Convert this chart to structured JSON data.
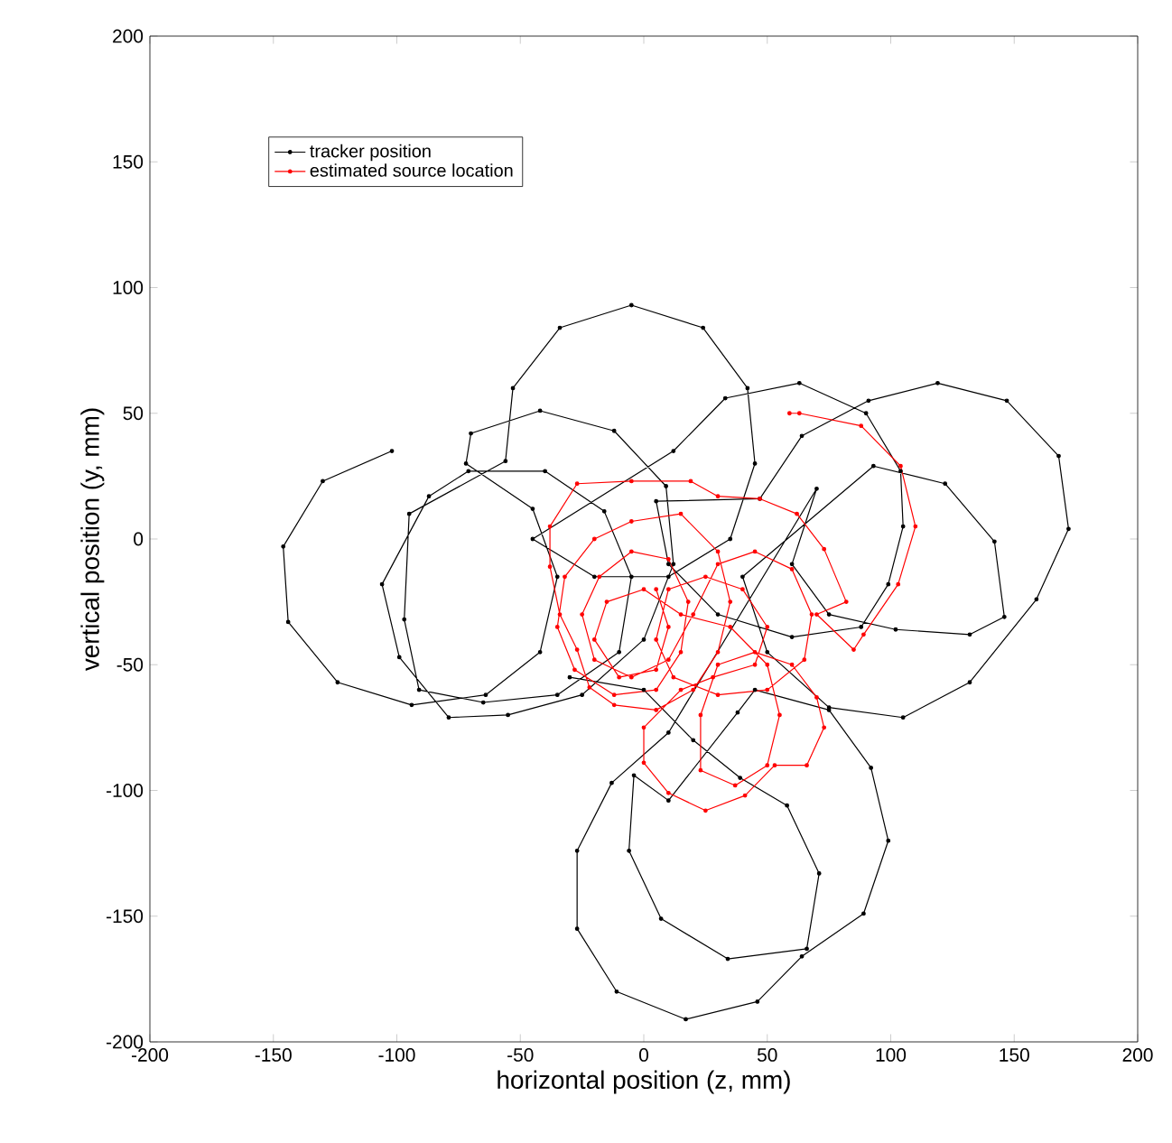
{
  "chart_data": {
    "type": "line",
    "xlabel": "horizontal position (z, mm)",
    "ylabel": "vertical position (y, mm)",
    "xlim": [
      -200,
      200
    ],
    "ylim": [
      -200,
      200
    ],
    "xticks": [
      -200,
      -150,
      -100,
      -50,
      0,
      50,
      100,
      150,
      200
    ],
    "yticks": [
      -200,
      -150,
      -100,
      -50,
      0,
      50,
      100,
      150,
      200
    ],
    "legend": "top left",
    "marker": "circle",
    "line_style": "solid",
    "grid": false,
    "series": [
      {
        "name": "tracker position",
        "color": "#000000",
        "x": [
          -102,
          -130,
          -146,
          -144,
          -124,
          -94,
          -64,
          -42,
          -35,
          -45,
          -72,
          -70,
          -42,
          -12,
          9,
          12,
          0,
          -25,
          -55,
          -79,
          -99,
          -106,
          -87,
          -71,
          -40,
          -16,
          -5,
          -10,
          -35,
          -65,
          -91,
          -97,
          -95,
          -56,
          -53,
          -34,
          -5,
          24,
          42,
          45,
          35,
          10,
          -20,
          -45,
          12,
          33,
          63,
          90,
          104,
          105,
          99,
          88,
          60,
          30,
          10,
          5,
          47,
          64,
          91,
          119,
          147,
          168,
          172,
          159,
          132,
          105,
          75,
          50,
          40,
          93,
          122,
          142,
          146,
          132,
          102,
          75,
          60,
          70,
          10,
          -13,
          -27,
          -27,
          -11,
          17,
          46,
          64,
          89,
          99,
          92,
          75,
          45,
          38,
          10,
          -4,
          -6,
          7,
          34,
          66,
          71,
          58,
          39,
          20,
          0,
          -30
        ],
        "values": [
          35,
          23,
          -3,
          -33,
          -57,
          -66,
          -62,
          -45,
          -15,
          12,
          30,
          42,
          51,
          43,
          21,
          -10,
          -40,
          -62,
          -70,
          -71,
          -47,
          -18,
          17,
          27,
          27,
          11,
          -15,
          -45,
          -62,
          -65,
          -60,
          -32,
          10,
          31,
          60,
          84,
          93,
          84,
          60,
          30,
          0,
          -15,
          -15,
          0,
          35,
          56,
          62,
          50,
          27,
          5,
          -18,
          -35,
          -39,
          -30,
          -10,
          15,
          16,
          41,
          55,
          62,
          55,
          33,
          4,
          -24,
          -57,
          -71,
          -67,
          -45,
          -15,
          29,
          22,
          -1,
          -31,
          -38,
          -36,
          -30,
          -10,
          20,
          -77,
          -97,
          -124,
          -155,
          -180,
          -191,
          -184,
          -166,
          -149,
          -120,
          -91,
          -68,
          -60,
          -69,
          -104,
          -94,
          -124,
          -151,
          -167,
          -163,
          -133,
          -106,
          -95,
          -80,
          -60,
          -55
        ]
      },
      {
        "name": "estimated source location",
        "color": "#ff0000",
        "x": [
          59,
          63,
          88,
          104,
          110,
          103,
          89,
          85,
          70,
          82,
          73,
          62,
          47,
          30,
          19,
          -5,
          -27,
          -38,
          -38,
          -34,
          -27,
          -22,
          -12,
          5,
          20,
          30,
          35,
          30,
          15,
          -5,
          -20,
          -32,
          -35,
          -28,
          -12,
          5,
          15,
          18,
          10,
          -5,
          -18,
          -25,
          -20,
          -5,
          10,
          20,
          30,
          45,
          60,
          68,
          65,
          50,
          30,
          12,
          5,
          10,
          25,
          40,
          50,
          45,
          28,
          15,
          0,
          0,
          10,
          25,
          41,
          53,
          66,
          73,
          70,
          60,
          45,
          30,
          23,
          23,
          37,
          50,
          55,
          50,
          35,
          15,
          0,
          -15,
          -20,
          -10,
          5,
          10,
          5
        ],
        "values": [
          50,
          50,
          45,
          29,
          5,
          -18,
          -38,
          -44,
          -30,
          -25,
          -4,
          10,
          16,
          17,
          23,
          23,
          22,
          5,
          -11,
          -30,
          -44,
          -59,
          -66,
          -68,
          -60,
          -45,
          -25,
          -5,
          10,
          7,
          0,
          -15,
          -35,
          -52,
          -62,
          -60,
          -45,
          -25,
          -8,
          -5,
          -15,
          -30,
          -48,
          -55,
          -48,
          -30,
          -10,
          -5,
          -12,
          -30,
          -48,
          -60,
          -62,
          -55,
          -40,
          -20,
          -15,
          -20,
          -35,
          -50,
          -55,
          -60,
          -75,
          -89,
          -101,
          -108,
          -102,
          -90,
          -90,
          -75,
          -63,
          -50,
          -45,
          -50,
          -70,
          -92,
          -98,
          -90,
          -70,
          -50,
          -35,
          -30,
          -20,
          -25,
          -40,
          -55,
          -52,
          -35,
          -20
        ]
      }
    ]
  }
}
